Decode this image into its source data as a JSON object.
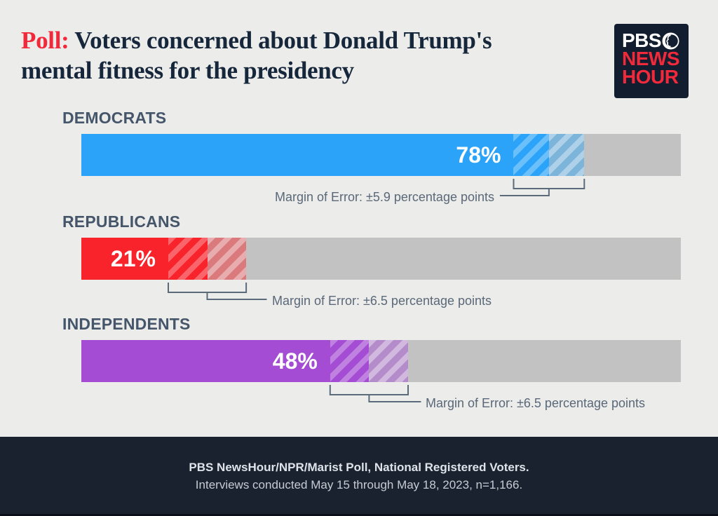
{
  "title": {
    "prefix": "Poll:",
    "line1": " Voters concerned about Donald Trump's",
    "line2": "mental fitness for the presidency"
  },
  "logo": {
    "line1": "PBS",
    "line2": "NEWS",
    "line3": "HOUR",
    "bg_color": "#121D2F",
    "red_color": "#F0293B"
  },
  "chart_data": {
    "type": "bar",
    "title": "Poll: Voters concerned about Donald Trump's mental fitness for the presidency",
    "categories": [
      "DEMOCRATS",
      "REPUBLICANS",
      "INDEPENDENTS"
    ],
    "values": [
      78,
      21,
      48
    ],
    "margins_of_error": [
      5.9,
      6.5,
      6.5
    ],
    "value_labels": [
      "78%",
      "21%",
      "48%"
    ],
    "moe_labels": [
      "Margin of Error: ±5.9 percentage points",
      "Margin of Error: ±6.5 percentage points",
      "Margin of Error: ±6.5 percentage points"
    ],
    "bar_colors": [
      "#2BA3F9",
      "#F8232B",
      "#A44CD3"
    ],
    "track_color": "#C2C2C2",
    "xlim": [
      0,
      100
    ],
    "grid": false,
    "legend": false
  },
  "footer": {
    "line1": "PBS NewsHour/NPR/Marist Poll, National Registered Voters.",
    "line2": "Interviews conducted May 15 through May 18, 2023, n=1,166."
  }
}
